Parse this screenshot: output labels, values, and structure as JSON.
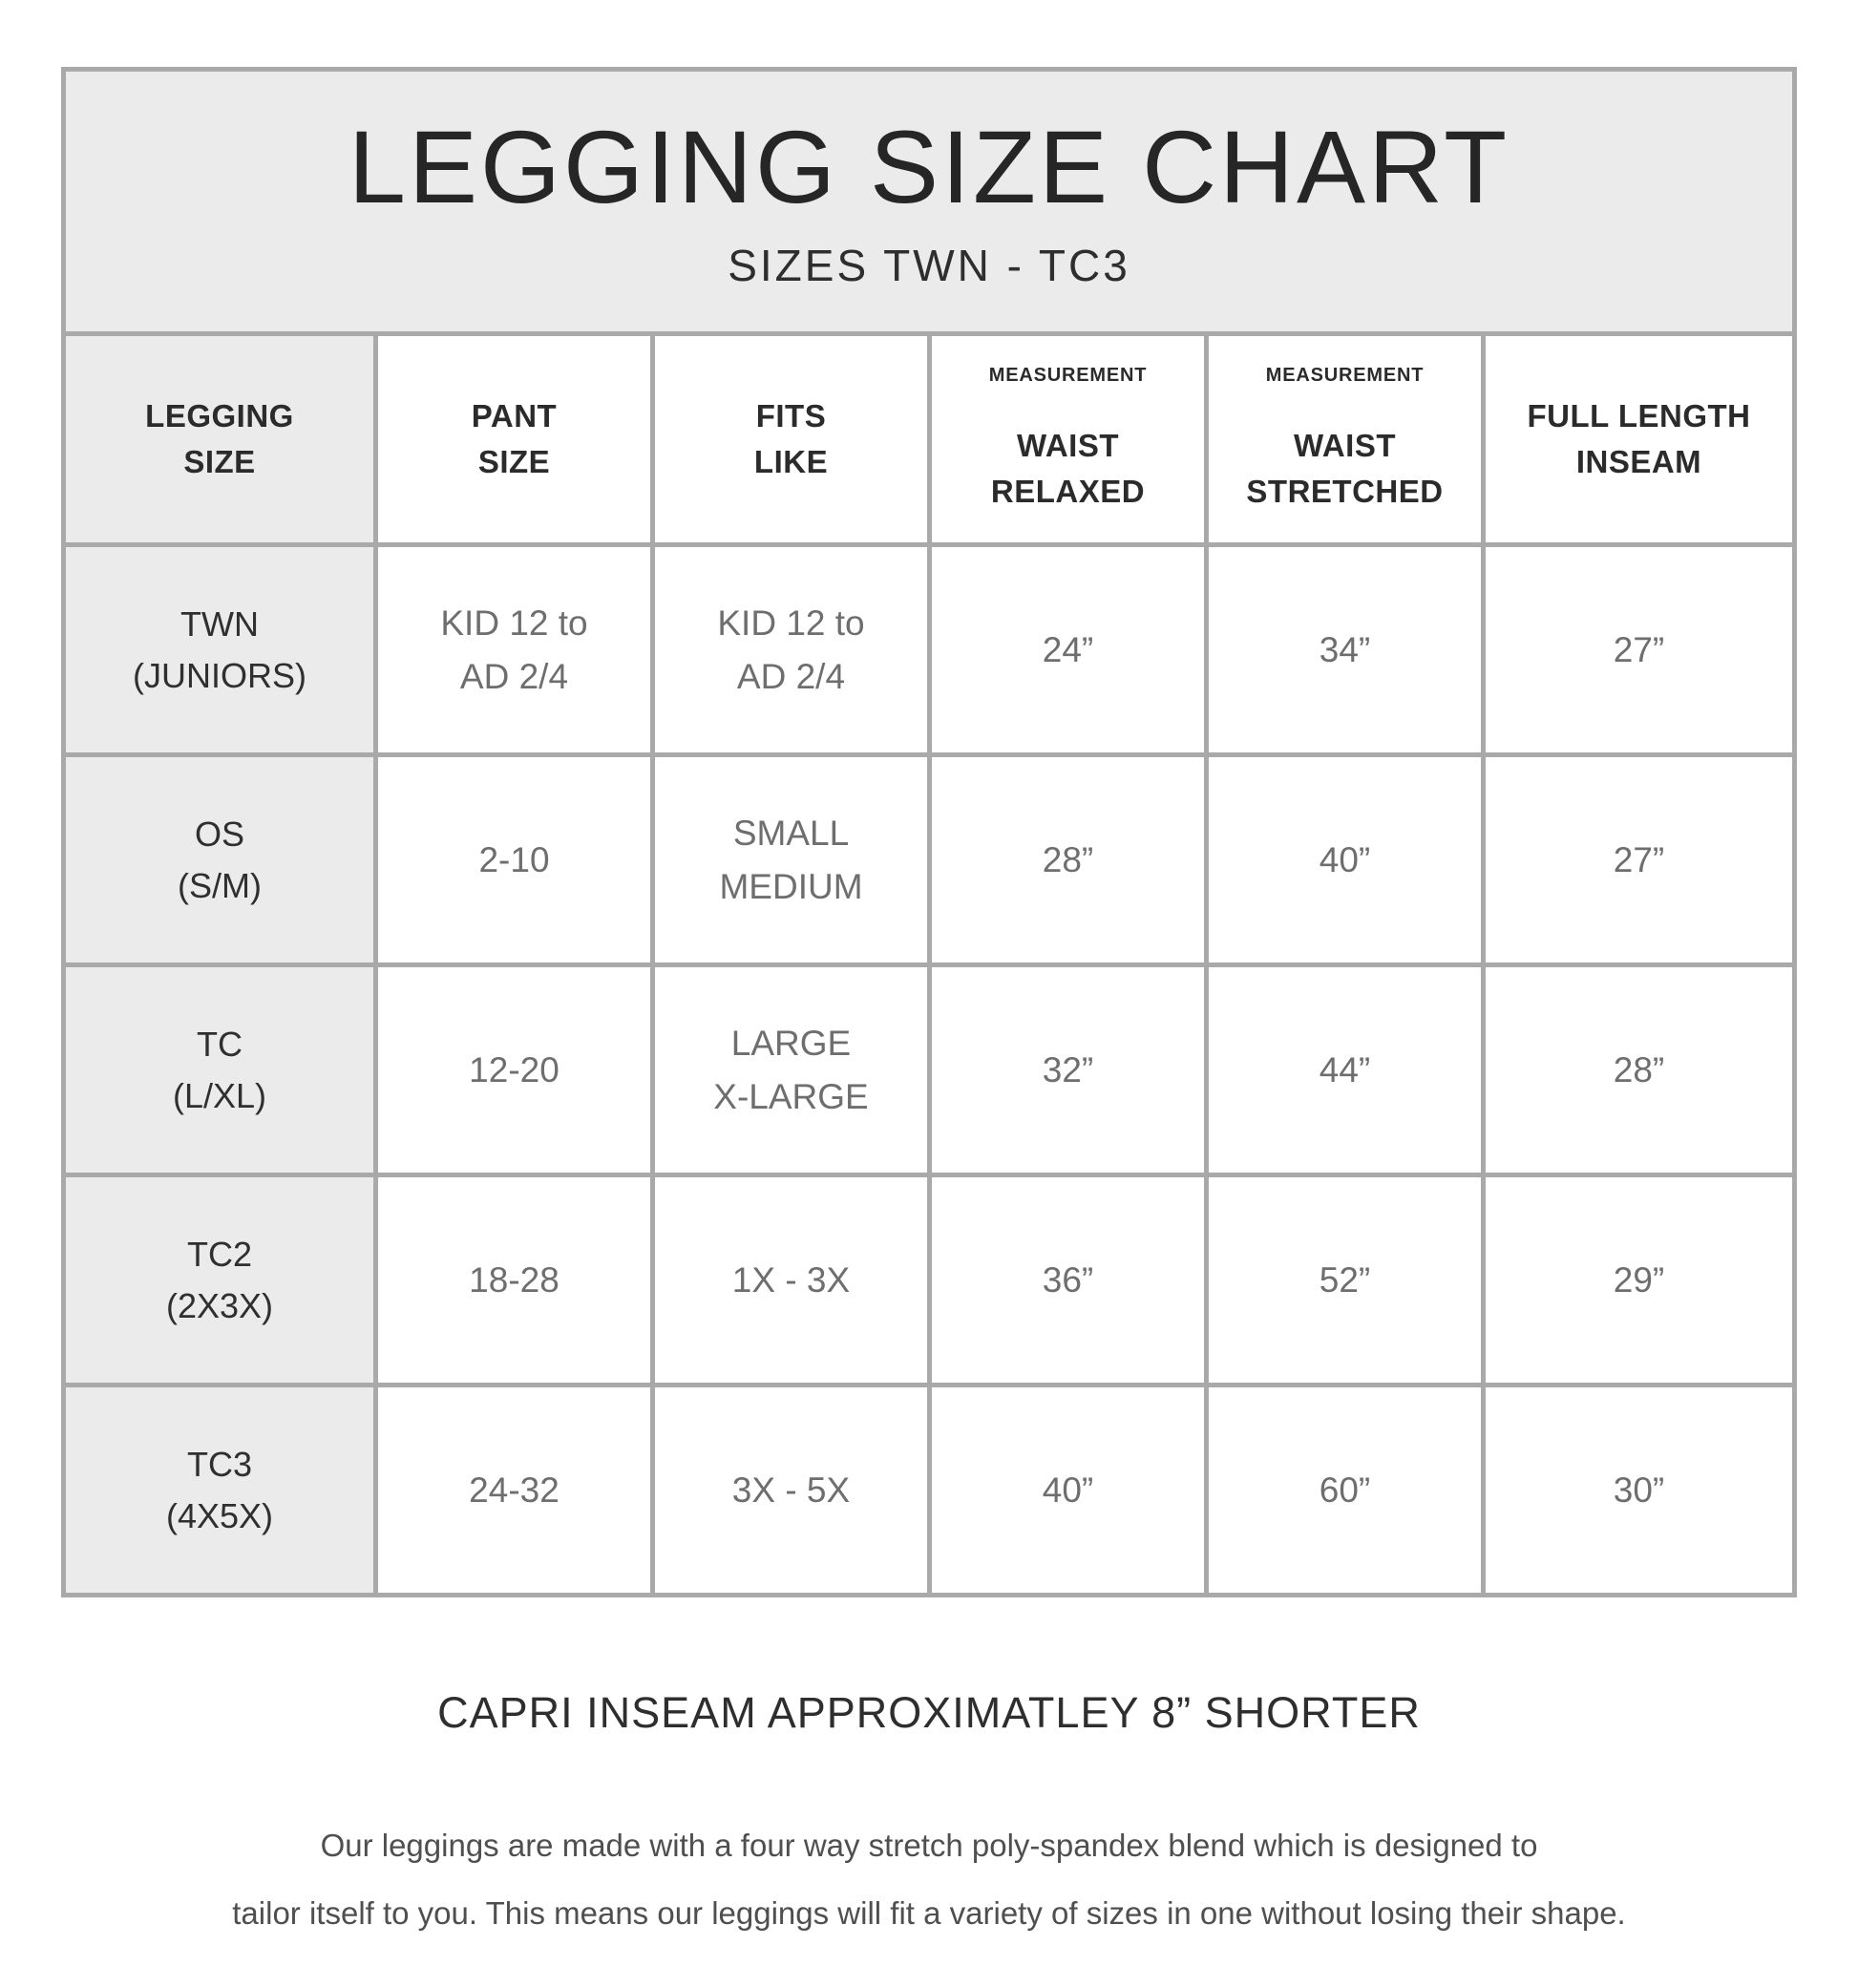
{
  "banner": {
    "title": "LEGGING SIZE CHART",
    "subtitle": "SIZES TWN - TC3"
  },
  "table": {
    "headers": [
      {
        "eyebrow": "",
        "label": "LEGGING\nSIZE"
      },
      {
        "eyebrow": "",
        "label": "PANT\nSIZE"
      },
      {
        "eyebrow": "",
        "label": "FITS\nLIKE"
      },
      {
        "eyebrow": "MEASUREMENT",
        "label": "WAIST\nRELAXED"
      },
      {
        "eyebrow": "MEASUREMENT",
        "label": "WAIST\nSTRETCHED"
      },
      {
        "eyebrow": "",
        "label": "FULL LENGTH\nINSEAM"
      }
    ],
    "rows": [
      {
        "legging_size": "TWN\n(JUNIORS)",
        "pant_size": "KID 12 to\nAD 2/4",
        "fits_like": "KID 12 to\nAD 2/4",
        "waist_relaxed": "24”",
        "waist_stretched": "34”",
        "inseam": "27”"
      },
      {
        "legging_size": "OS\n(S/M)",
        "pant_size": "2-10",
        "fits_like": "SMALL\nMEDIUM",
        "waist_relaxed": "28”",
        "waist_stretched": "40”",
        "inseam": "27”"
      },
      {
        "legging_size": "TC\n(L/XL)",
        "pant_size": "12-20",
        "fits_like": "LARGE\nX-LARGE",
        "waist_relaxed": "32”",
        "waist_stretched": "44”",
        "inseam": "28”"
      },
      {
        "legging_size": "TC2\n(2X3X)",
        "pant_size": "18-28",
        "fits_like": "1X - 3X",
        "waist_relaxed": "36”",
        "waist_stretched": "52”",
        "inseam": "29”"
      },
      {
        "legging_size": "TC3\n(4X5X)",
        "pant_size": "24-32",
        "fits_like": "3X - 5X",
        "waist_relaxed": "40”",
        "waist_stretched": "60”",
        "inseam": "30”"
      }
    ]
  },
  "footer": {
    "capri_note": "CAPRI INSEAM APPROXIMATLEY 8” SHORTER",
    "description_line1": "Our leggings are made with a four way stretch poly-spandex blend which is designed to",
    "description_line2": "tailor itself to you. This means our leggings will fit a variety of sizes in one without losing their shape."
  },
  "colors": {
    "border_gray": "#a9a9a9",
    "band_gray": "#ebebeb",
    "header_text": "#2b2b2b",
    "data_text": "#6e6e6e"
  }
}
